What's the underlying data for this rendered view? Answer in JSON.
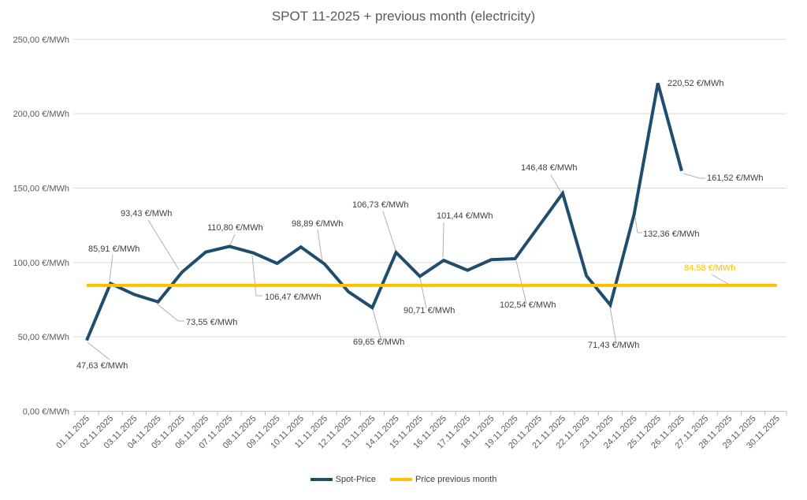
{
  "title": "SPOT 11-2025 + previous month (electricity)",
  "colors": {
    "spot_line": "#1f4d6e",
    "previous_line": "#ffc000",
    "gridline": "#d9d9d9",
    "axis_line": "#bfbfbf",
    "axis_text": "#595959",
    "label_text": "#404040",
    "leader_line": "#b0b0b0",
    "previous_label_text": "#ffc000",
    "background": "#ffffff"
  },
  "chart_data": {
    "type": "line",
    "title": "SPOT 11-2025 + previous month (electricity)",
    "unit": "€/MWh",
    "x_axis": {
      "categories": [
        "01.11.2025",
        "02.11.2025",
        "03.11.2025",
        "04.11.2025",
        "05.11.2025",
        "06.11.2025",
        "07.11.2025",
        "08.11.2025",
        "09.11.2025",
        "10.11.2025",
        "11.11.2025",
        "12.11.2025",
        "13.11.2025",
        "14.11.2025",
        "15.11.2025",
        "16.11.2025",
        "17.11.2025",
        "18.11.2025",
        "19.11.2025",
        "20.11.2025",
        "21.11.2025",
        "22.11.2025",
        "23.11.2025",
        "24.11.2025",
        "25.11.2025",
        "26.11.2025",
        "27.11.2025",
        "28.11.2025",
        "29.11.2025",
        "30.11.2025"
      ]
    },
    "y_axis": {
      "min": 0,
      "max": 250,
      "step": 50,
      "tick_labels": [
        "0,00 €/MWh",
        "50,00 €/MWh",
        "100,00 €/MWh",
        "150,00 €/MWh",
        "200,00 €/MWh",
        "250,00 €/MWh"
      ],
      "grid": true
    },
    "legend_position": "bottom",
    "series": [
      {
        "name": "Spot-Price",
        "color": "#1f4d6e",
        "values": [
          47.63,
          85.91,
          78.5,
          73.55,
          93.43,
          107.0,
          110.8,
          106.47,
          99.4,
          110.4,
          98.89,
          80.3,
          69.65,
          106.73,
          90.71,
          101.44,
          94.8,
          101.9,
          102.54,
          124.5,
          146.48,
          91.0,
          71.43,
          132.36,
          220.52,
          161.52,
          null,
          null,
          null,
          null
        ],
        "data_labels": [
          {
            "index": 0,
            "text": "47,63 €/MWh"
          },
          {
            "index": 1,
            "text": "85,91 €/MWh"
          },
          {
            "index": 3,
            "text": "73,55 €/MWh"
          },
          {
            "index": 4,
            "text": "93,43 €/MWh"
          },
          {
            "index": 6,
            "text": "110,80 €/MWh"
          },
          {
            "index": 7,
            "text": "106,47 €/MWh"
          },
          {
            "index": 10,
            "text": "98,89 €/MWh"
          },
          {
            "index": 12,
            "text": "69,65 €/MWh"
          },
          {
            "index": 13,
            "text": "106,73 €/MWh"
          },
          {
            "index": 14,
            "text": "90,71 €/MWh"
          },
          {
            "index": 15,
            "text": "101,44 €/MWh"
          },
          {
            "index": 18,
            "text": "102,54 €/MWh"
          },
          {
            "index": 20,
            "text": "146,48 €/MWh"
          },
          {
            "index": 22,
            "text": "71,43 €/MWh"
          },
          {
            "index": 23,
            "text": "132,36 €/MWh"
          },
          {
            "index": 24,
            "text": "220,52 €/MWh"
          },
          {
            "index": 25,
            "text": "161,52 €/MWh"
          }
        ]
      },
      {
        "name": "Price previous month",
        "color": "#ffc000",
        "constant_value": 84.58,
        "data_label": "84,58 €/MWh"
      }
    ]
  }
}
